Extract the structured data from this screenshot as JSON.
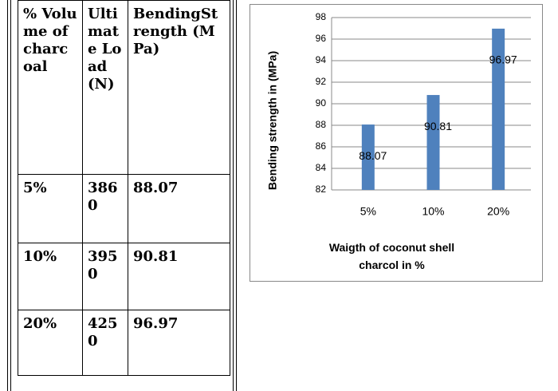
{
  "table": {
    "headers": [
      "% Volume of charcoal",
      "Ultimate Load (N)",
      "BendingStrength (MPa)"
    ],
    "rows": [
      [
        "5%",
        3860,
        88.07
      ],
      [
        "10%",
        3950,
        90.81
      ],
      [
        "20%",
        4250,
        96.97
      ]
    ]
  },
  "chart_data": {
    "type": "bar",
    "categories": [
      "5%",
      "10%",
      "20%"
    ],
    "values": [
      88.07,
      90.81,
      96.97
    ],
    "color": "#4f81bd",
    "ylim": [
      82,
      98
    ],
    "yticks": [
      82,
      84,
      86,
      88,
      90,
      92,
      94,
      96,
      98
    ],
    "grid": true,
    "y_label": "Bending strength  in (MPa)",
    "x_label": "Waigth of coconut shell charcol in %"
  }
}
